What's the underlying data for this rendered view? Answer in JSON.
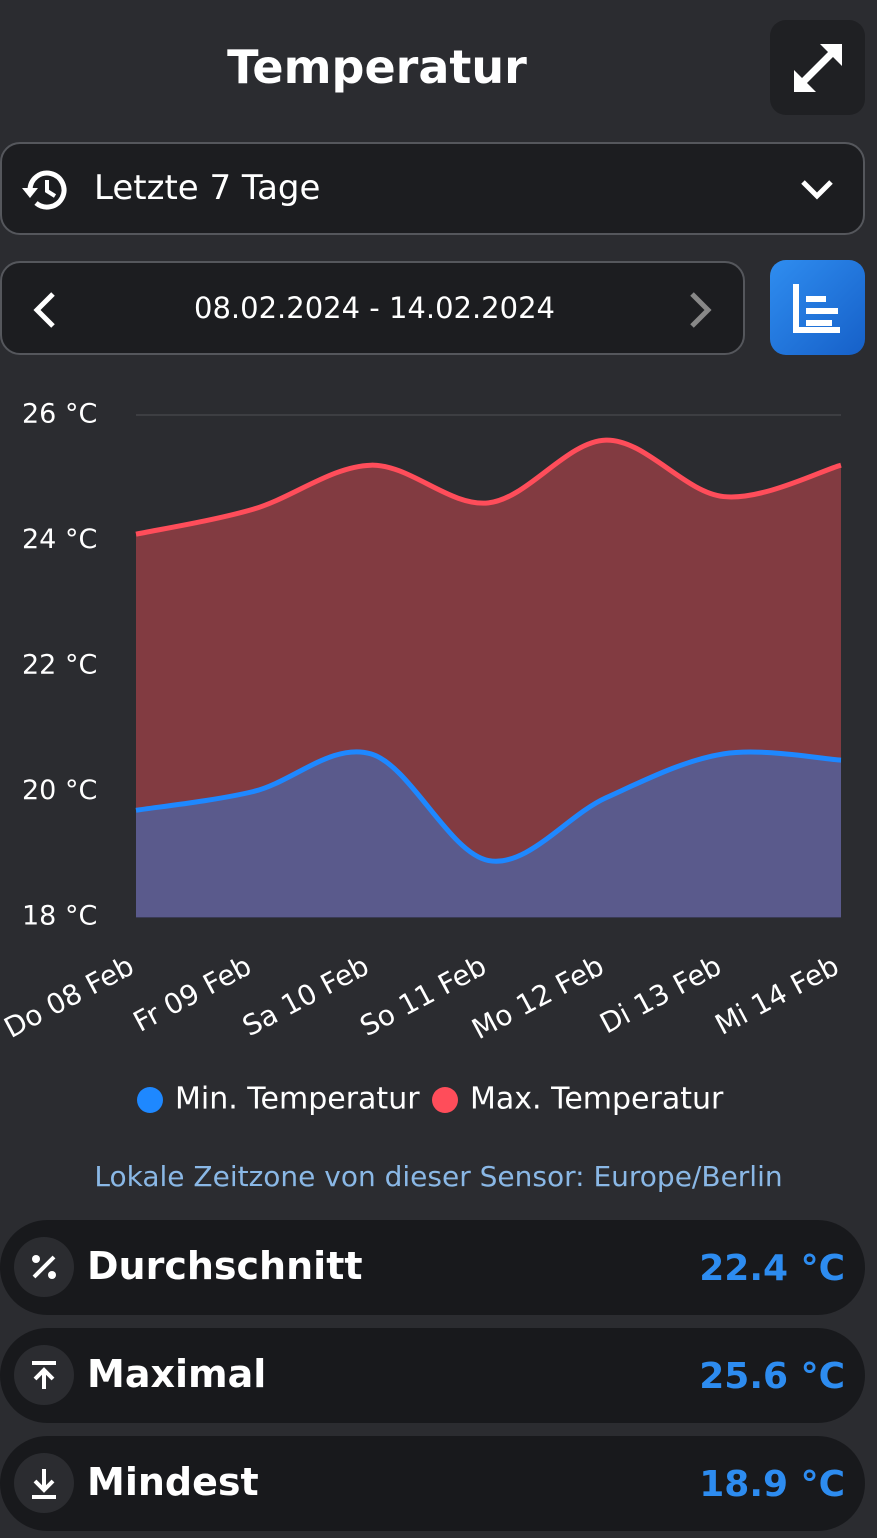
{
  "header": {
    "title": "Temperatur"
  },
  "range_select": {
    "label": "Letzte 7 Tage"
  },
  "date_range": {
    "label": "08.02.2024 - 14.02.2024"
  },
  "chart_data": {
    "type": "area",
    "categories": [
      "Do 08 Feb",
      "Fr 09 Feb",
      "Sa 10 Feb",
      "So 11 Feb",
      "Mo 12 Feb",
      "Di 13 Feb",
      "Mi 14 Feb"
    ],
    "series": [
      {
        "name": "Min. Temperatur",
        "color": "#1e88ff",
        "fill": "#5a5a8c",
        "values": [
          19.7,
          20.0,
          20.6,
          18.9,
          19.9,
          20.6,
          20.5
        ]
      },
      {
        "name": "Max. Temperatur",
        "color": "#ff4d5a",
        "fill": "#823b41",
        "values": [
          24.1,
          24.5,
          25.2,
          24.6,
          25.6,
          24.7,
          25.2
        ]
      }
    ],
    "ylim": [
      18,
      26
    ],
    "yticks": [
      {
        "value": 18,
        "label": "18 °C"
      },
      {
        "value": 20,
        "label": "20 °C"
      },
      {
        "value": 22,
        "label": "22 °C"
      },
      {
        "value": 24,
        "label": "24 °C"
      },
      {
        "value": 26,
        "label": "26 °C"
      }
    ],
    "grid": true
  },
  "timezone_note": "Lokale Zeitzone von dieser Sensor: Europe/Berlin",
  "stats": [
    {
      "label": "Durchschnitt",
      "value": "22.4 °C"
    },
    {
      "label": "Maximal",
      "value": "25.6 °C"
    },
    {
      "label": "Mindest",
      "value": "18.9 °C"
    }
  ]
}
